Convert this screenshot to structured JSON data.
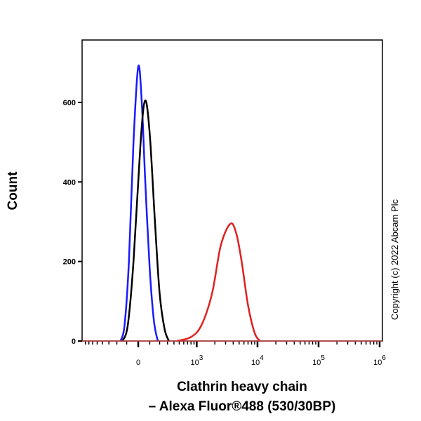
{
  "chart_data": {
    "type": "line",
    "title": "",
    "xlabel_line1": "Clathrin heavy chain",
    "xlabel_line2": "– Alexa Fluor®488 (530/30BP)",
    "ylabel": "Count",
    "x_scale": "biexponential",
    "ylim": [
      0,
      757
    ],
    "yticks": [
      0,
      200,
      400,
      600
    ],
    "xticks": [
      {
        "value": 0,
        "label": "0"
      },
      {
        "value": 1000,
        "label": "10",
        "exp": "3"
      },
      {
        "value": 10000,
        "label": "10",
        "exp": "4"
      },
      {
        "value": 100000,
        "label": "10",
        "exp": "5"
      },
      {
        "value": 1000000,
        "label": "10",
        "exp": "6"
      }
    ],
    "grid": false,
    "series": [
      {
        "color": "#1a1aff",
        "points": [
          [
            -160,
            0
          ],
          [
            -120,
            40
          ],
          [
            -80,
            200
          ],
          [
            -40,
            500
          ],
          [
            0,
            690
          ],
          [
            30,
            600
          ],
          [
            60,
            400
          ],
          [
            100,
            180
          ],
          [
            140,
            50
          ],
          [
            180,
            0
          ]
        ]
      },
      {
        "color": "#000000",
        "points": [
          [
            -140,
            0
          ],
          [
            -90,
            40
          ],
          [
            -40,
            200
          ],
          [
            20,
            500
          ],
          [
            59,
            605
          ],
          [
            100,
            520
          ],
          [
            150,
            300
          ],
          [
            200,
            120
          ],
          [
            260,
            30
          ],
          [
            320,
            0
          ]
        ]
      },
      {
        "color": "#e02020",
        "points": [
          [
            450,
            0
          ],
          [
            800,
            10
          ],
          [
            1200,
            40
          ],
          [
            1800,
            120
          ],
          [
            2500,
            240
          ],
          [
            3600,
            295
          ],
          [
            4500,
            270
          ],
          [
            5500,
            200
          ],
          [
            7000,
            90
          ],
          [
            9000,
            20
          ],
          [
            11000,
            0
          ]
        ]
      }
    ],
    "copyright": "Copyright (c) 2022 Abcam Plc"
  }
}
